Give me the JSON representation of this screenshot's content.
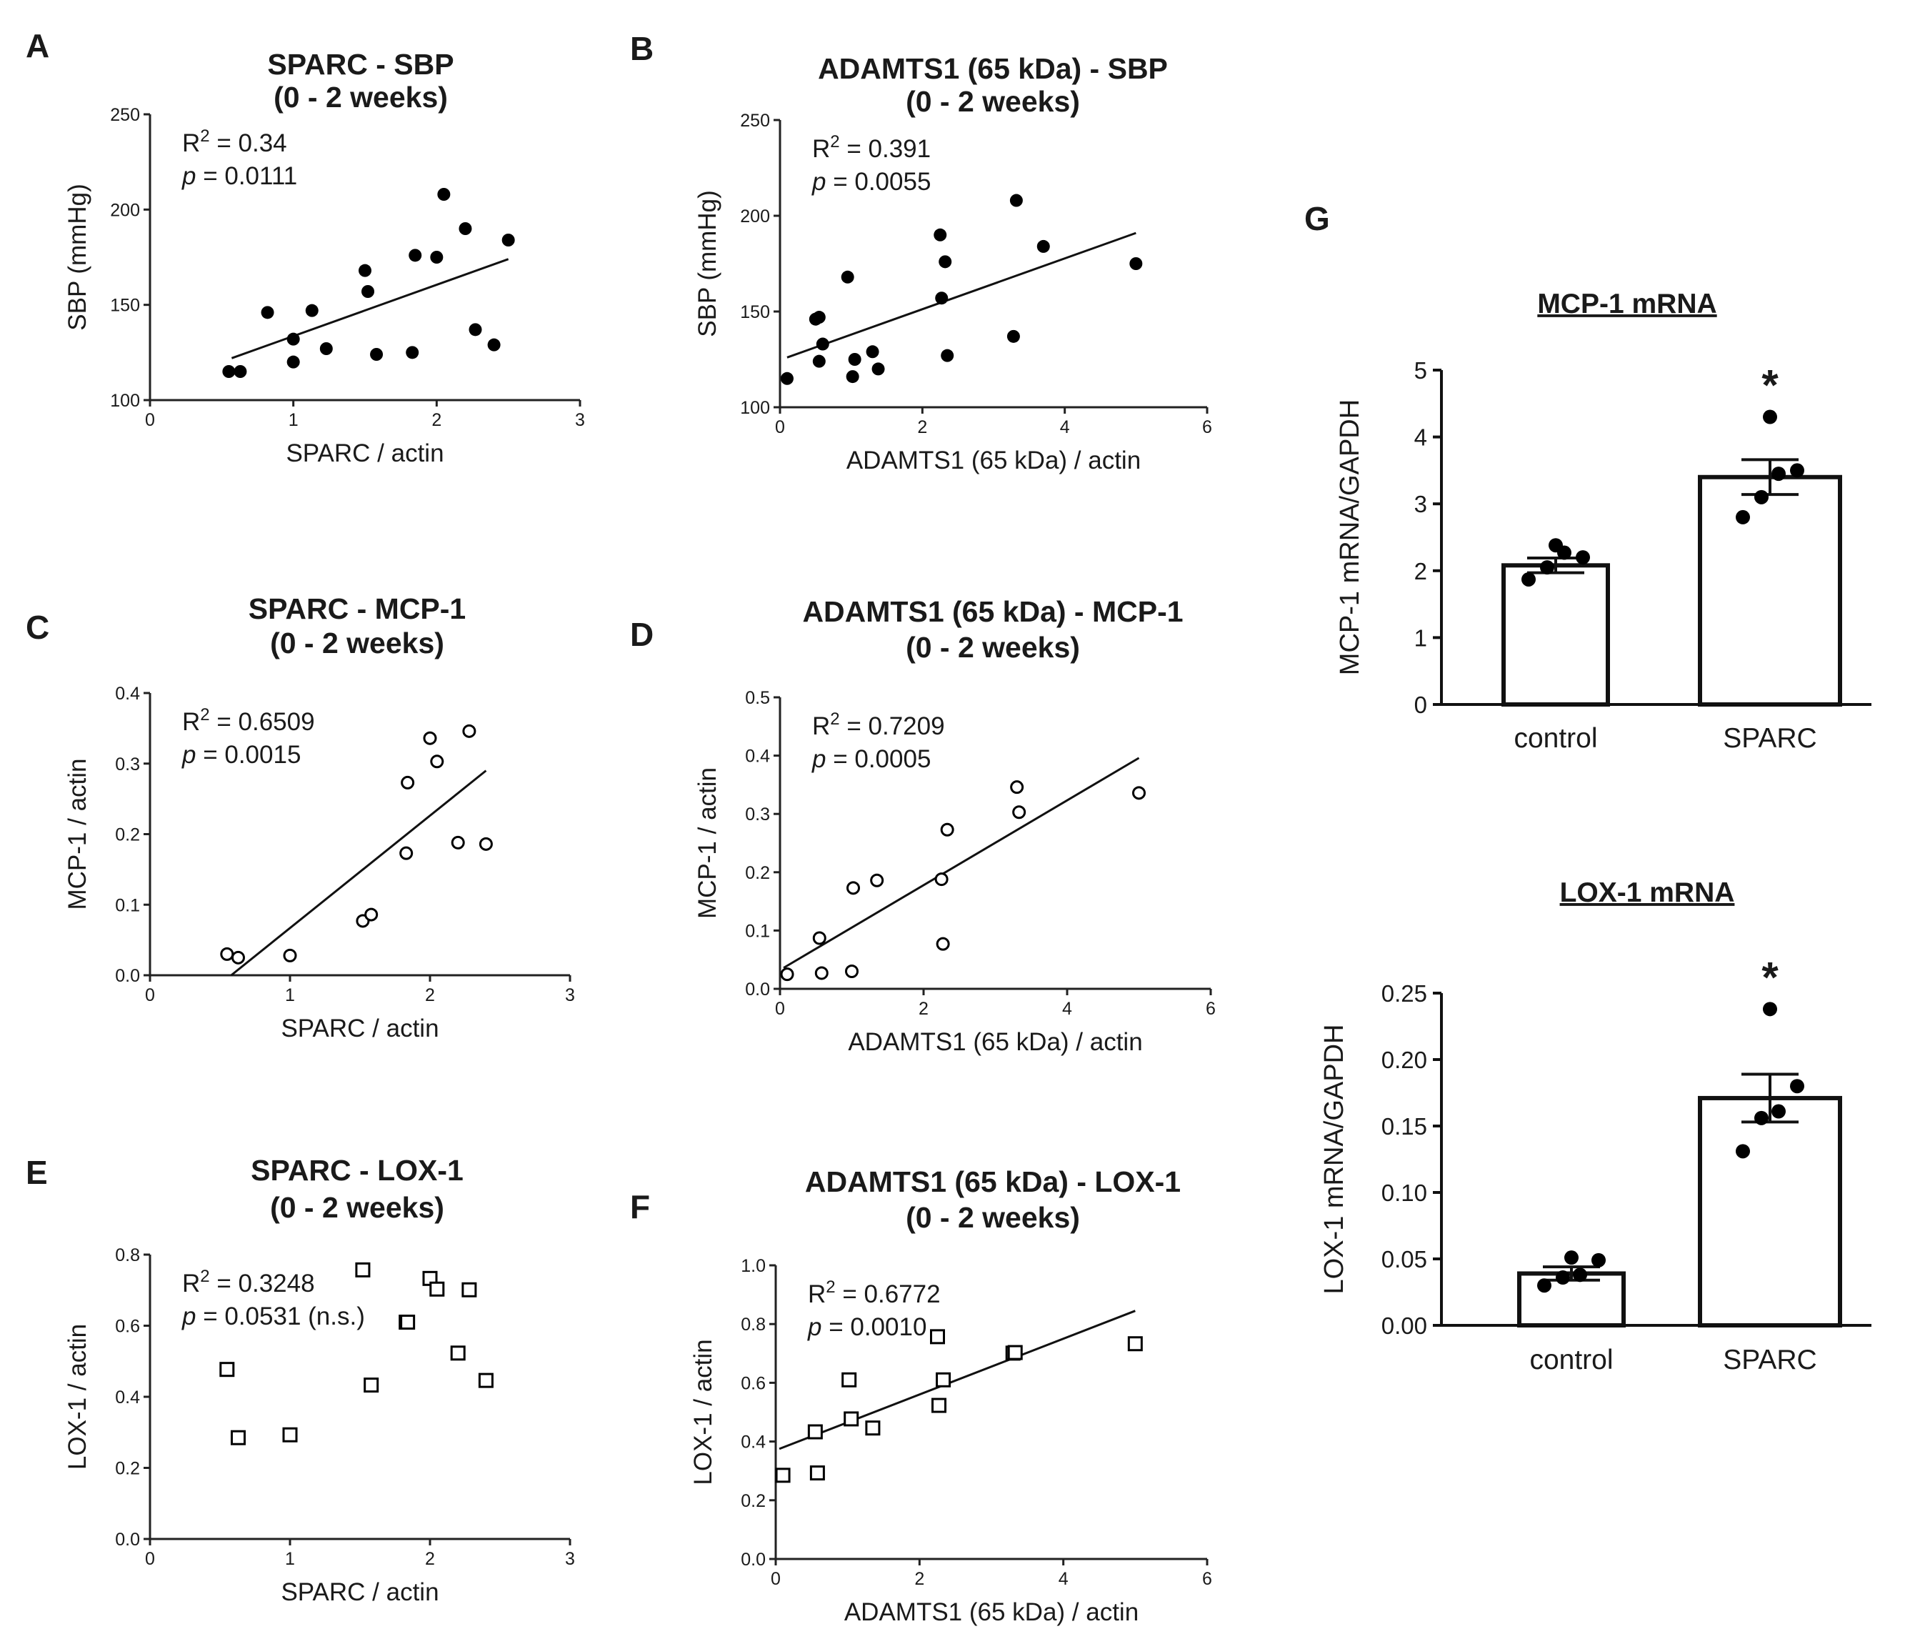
{
  "chart_data": [
    {
      "id": "A",
      "type": "scatter",
      "panel_letter": "A",
      "title_lines": [
        "SPARC - SBP",
        "(0 - 2 weeks)"
      ],
      "xlabel": "SPARC / actin",
      "ylabel": "SBP (mmHg)",
      "xlim": [
        0,
        3
      ],
      "ylim": [
        100,
        250
      ],
      "xticks": [
        0,
        1,
        2,
        3
      ],
      "yticks": [
        100,
        150,
        200,
        250
      ],
      "marker": "filled-circle",
      "stat1_label": "R",
      "stat1_sup": "2",
      "stat1_value": " = 0.34",
      "stat2_label": "p",
      "stat2_value": " = 0.0111",
      "fit": [
        [
          0.57,
          122
        ],
        [
          2.5,
          174
        ]
      ],
      "x": [
        0.55,
        0.63,
        0.82,
        1.0,
        1.0,
        1.13,
        1.23,
        1.5,
        1.52,
        1.58,
        1.83,
        1.85,
        2.0,
        2.05,
        2.2,
        2.27,
        2.4,
        2.5
      ],
      "y": [
        115,
        115,
        146,
        132,
        120,
        147,
        127,
        168,
        157,
        124,
        125,
        176,
        175,
        208,
        190,
        137,
        129,
        184
      ]
    },
    {
      "id": "B",
      "type": "scatter",
      "panel_letter": "B",
      "title_lines": [
        "ADAMTS1 (65 kDa) - SBP",
        "(0 - 2 weeks)"
      ],
      "xlabel": "ADAMTS1 (65 kDa) / actin",
      "ylabel": "SBP (mmHg)",
      "xlim": [
        0,
        6
      ],
      "ylim": [
        100,
        250
      ],
      "xticks": [
        0,
        2,
        4,
        6
      ],
      "yticks": [
        100,
        150,
        200,
        250
      ],
      "marker": "filled-circle",
      "stat1_label": "R",
      "stat1_sup": "2",
      "stat1_value": " = 0.391",
      "stat2_label": "p",
      "stat2_value": " = 0.0055",
      "fit": [
        [
          0.1,
          126
        ],
        [
          5.0,
          191
        ]
      ],
      "x": [
        0.1,
        0.5,
        0.55,
        0.55,
        0.6,
        0.95,
        1.02,
        1.05,
        1.3,
        1.38,
        2.25,
        2.27,
        2.32,
        2.35,
        3.28,
        3.32,
        3.7,
        5.0
      ],
      "y": [
        115,
        146,
        147,
        124,
        133,
        168,
        116,
        125,
        129,
        120,
        190,
        157,
        176,
        127,
        137,
        208,
        184,
        175
      ]
    },
    {
      "id": "C",
      "type": "scatter",
      "panel_letter": "C",
      "title_lines": [
        "SPARC - MCP-1",
        "(0 - 2 weeks)"
      ],
      "xlabel": "SPARC / actin",
      "ylabel": "MCP-1 / actin",
      "xlim": [
        0,
        3
      ],
      "ylim": [
        0,
        0.4
      ],
      "xticks": [
        0,
        1,
        2,
        3
      ],
      "yticks": [
        0.0,
        0.1,
        0.2,
        0.3,
        0.4
      ],
      "yticklabels": [
        "0.0",
        "0.1",
        "0.2",
        "0.3",
        "0.4"
      ],
      "marker": "open-circle",
      "stat1_label": "R",
      "stat1_sup": "2",
      "stat1_value": " = 0.6509",
      "stat2_label": "p",
      "stat2_value": " = 0.0015",
      "fit": [
        [
          0.58,
          0
        ],
        [
          2.4,
          0.29
        ]
      ],
      "x": [
        0.55,
        0.63,
        1.0,
        1.52,
        1.58,
        1.83,
        1.84,
        2.0,
        2.05,
        2.2,
        2.28,
        2.4
      ],
      "y": [
        0.03,
        0.025,
        0.028,
        0.077,
        0.086,
        0.173,
        0.273,
        0.336,
        0.303,
        0.188,
        0.346,
        0.186
      ]
    },
    {
      "id": "D",
      "type": "scatter",
      "panel_letter": "D",
      "title_lines": [
        "ADAMTS1 (65 kDa) - MCP-1",
        "(0 - 2 weeks)"
      ],
      "xlabel": "ADAMTS1 (65 kDa) / actin",
      "ylabel": "MCP-1 / actin",
      "xlim": [
        0,
        6
      ],
      "ylim": [
        0,
        0.5
      ],
      "xticks": [
        0,
        2,
        4,
        6
      ],
      "yticks": [
        0.0,
        0.1,
        0.2,
        0.3,
        0.4,
        0.5
      ],
      "yticklabels": [
        "0.0",
        "0.1",
        "0.2",
        "0.3",
        "0.4",
        "0.5"
      ],
      "marker": "open-circle",
      "stat1_label": "R",
      "stat1_sup": "2",
      "stat1_value": " = 0.7209",
      "stat2_label": "p",
      "stat2_value": " = 0.0005",
      "fit": [
        [
          0.05,
          0.036
        ],
        [
          5.0,
          0.396
        ]
      ],
      "x": [
        0.1,
        0.55,
        0.58,
        1.0,
        1.02,
        1.35,
        2.25,
        2.27,
        2.33,
        3.3,
        3.33,
        5.0
      ],
      "y": [
        0.025,
        0.087,
        0.027,
        0.03,
        0.173,
        0.186,
        0.188,
        0.077,
        0.273,
        0.346,
        0.303,
        0.336
      ]
    },
    {
      "id": "E",
      "type": "scatter",
      "panel_letter": "E",
      "title_lines": [
        "SPARC - LOX-1",
        "(0 - 2 weeks)"
      ],
      "xlabel": "SPARC / actin",
      "ylabel": "LOX-1 / actin",
      "xlim": [
        0,
        3
      ],
      "ylim": [
        0,
        0.8
      ],
      "xticks": [
        0,
        1,
        2,
        3
      ],
      "yticks": [
        0.0,
        0.2,
        0.4,
        0.6,
        0.8
      ],
      "yticklabels": [
        "0.0",
        "0.2",
        "0.4",
        "0.6",
        "0.8"
      ],
      "marker": "open-square",
      "stat1_label": "R",
      "stat1_sup": "2",
      "stat1_value": " = 0.3248",
      "stat2_label": "p",
      "stat2_value": " = 0.0531 (n.s.)",
      "fit": null,
      "x": [
        0.55,
        0.63,
        1.0,
        1.52,
        1.58,
        1.83,
        1.84,
        2.0,
        2.05,
        2.2,
        2.28,
        2.4
      ],
      "y": [
        0.477,
        0.285,
        0.293,
        0.757,
        0.433,
        0.61,
        0.61,
        0.733,
        0.703,
        0.523,
        0.701,
        0.446
      ]
    },
    {
      "id": "F",
      "type": "scatter",
      "panel_letter": "F",
      "title_lines": [
        "ADAMTS1 (65 kDa) - LOX-1",
        "(0 - 2 weeks)"
      ],
      "xlabel": "ADAMTS1 (65 kDa) / actin",
      "ylabel": "LOX-1 / actin",
      "xlim": [
        0,
        6
      ],
      "ylim": [
        0,
        1.0
      ],
      "xticks": [
        0,
        2,
        4,
        6
      ],
      "yticks": [
        0.0,
        0.2,
        0.4,
        0.6,
        0.8,
        1.0
      ],
      "yticklabels": [
        "0.0",
        "0.2",
        "0.4",
        "0.6",
        "0.8",
        "1.0"
      ],
      "marker": "open-square",
      "stat1_label": "R",
      "stat1_sup": "2",
      "stat1_value": " = 0.6772",
      "stat2_label": "p",
      "stat2_value": " = 0.0010",
      "fit": [
        [
          0.05,
          0.375
        ],
        [
          5.0,
          0.845
        ]
      ],
      "x": [
        0.1,
        0.55,
        0.58,
        1.02,
        1.05,
        1.35,
        2.25,
        2.27,
        2.33,
        3.3,
        3.33,
        5.0
      ],
      "y": [
        0.285,
        0.433,
        0.293,
        0.61,
        0.477,
        0.446,
        0.757,
        0.523,
        0.61,
        0.701,
        0.703,
        0.733
      ]
    },
    {
      "id": "G1",
      "type": "bar",
      "panel_letter": "G",
      "title": "MCP-1 mRNA",
      "ylabel": "MCP-1 mRNA/GAPDH",
      "categories": [
        "control",
        "SPARC"
      ],
      "values": [
        2.08,
        3.4
      ],
      "sem": [
        0.11,
        0.26
      ],
      "points": [
        [
          1.87,
          2.05,
          2.27,
          2.2,
          2.38
        ],
        [
          2.8,
          3.1,
          3.45,
          3.5,
          4.3
        ]
      ],
      "ylim": [
        0,
        5
      ],
      "yticks": [
        0,
        1,
        2,
        3,
        4,
        5
      ],
      "yticklabels": [
        "0",
        "1",
        "2",
        "3",
        "4",
        "5"
      ],
      "significance": "*"
    },
    {
      "id": "G2",
      "type": "bar",
      "title": "LOX-1 mRNA",
      "ylabel": "LOX-1 mRNA/GAPDH",
      "categories": [
        "control",
        "SPARC"
      ],
      "values": [
        0.039,
        0.171
      ],
      "sem": [
        0.005,
        0.018
      ],
      "points": [
        [
          0.03,
          0.036,
          0.038,
          0.049,
          0.051
        ],
        [
          0.131,
          0.156,
          0.161,
          0.18,
          0.238
        ]
      ],
      "ylim": [
        0,
        0.25
      ],
      "yticks": [
        0,
        0.05,
        0.1,
        0.15,
        0.2,
        0.25
      ],
      "yticklabels": [
        "0.00",
        "0.05",
        "0.10",
        "0.15",
        "0.20",
        "0.25"
      ],
      "significance": "*"
    }
  ]
}
